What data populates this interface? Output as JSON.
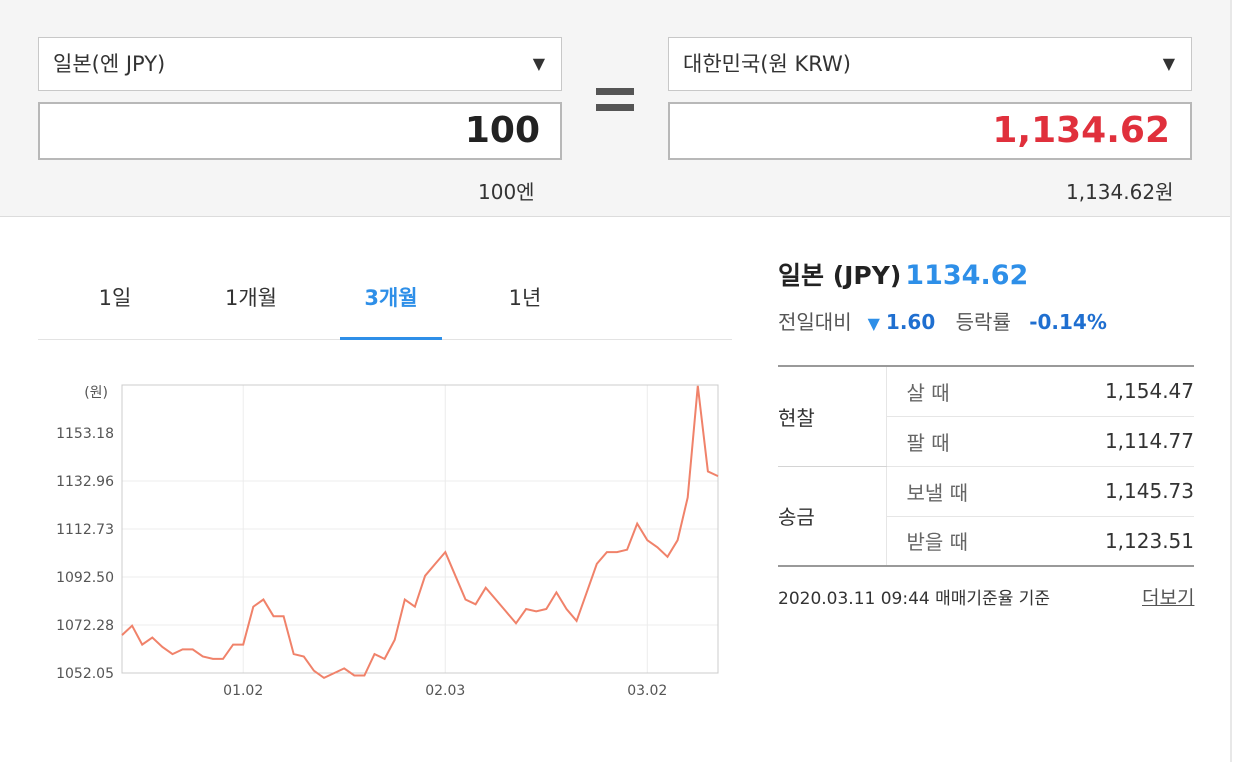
{
  "converter": {
    "from_currency": "일본(엔 JPY)",
    "from_amount": "100",
    "from_readable": "100엔",
    "to_currency": "대한민국(원 KRW)",
    "to_amount": "1,134.62",
    "to_readable": "1,134.62원",
    "chevron_icon": "▼",
    "accent_red": "#e0303c"
  },
  "tabs": [
    "1일",
    "1개월",
    "3개월",
    "1년"
  ],
  "active_tab": "3개월",
  "chart_data": {
    "type": "line",
    "unit_label": "(원)",
    "ytick_labels": [
      "1153.18",
      "1132.96",
      "1112.73",
      "1092.50",
      "1072.28",
      "1052.05"
    ],
    "yticks": [
      1153.18,
      1132.96,
      1112.73,
      1092.5,
      1072.28,
      1052.05
    ],
    "ylim": [
      1052.05,
      1173.4
    ],
    "x_tick_labels": [
      "01.02",
      "02.03",
      "03.02"
    ],
    "x_tick_index": [
      12,
      32,
      52
    ],
    "series": [
      {
        "color": "#f0826a",
        "values": [
          1068,
          1072,
          1064,
          1067,
          1063,
          1060,
          1062,
          1062,
          1059,
          1058,
          1058,
          1064,
          1064,
          1080,
          1083,
          1076,
          1076,
          1060,
          1059,
          1053,
          1050,
          1052,
          1054,
          1051,
          1051,
          1060,
          1058,
          1066,
          1083,
          1080,
          1093,
          1098,
          1103,
          1093,
          1083,
          1081,
          1088,
          1083,
          1078,
          1073,
          1079,
          1078,
          1079,
          1086,
          1079,
          1074,
          1086,
          1098,
          1103,
          1103,
          1104,
          1115,
          1108,
          1105,
          1101,
          1108,
          1126,
          1173,
          1137,
          1135
        ]
      }
    ]
  },
  "info": {
    "country": "일본 (JPY)",
    "rate": "1134.62",
    "diff_label": "전일대비",
    "diff_arrow": "▼",
    "diff_value": "1.60",
    "pct_label": "등락률",
    "pct_value": "-0.14%",
    "cash_label": "현찰",
    "remit_label": "송금",
    "rows": [
      {
        "label": "살 때",
        "value": "1,154.47"
      },
      {
        "label": "팔 때",
        "value": "1,114.77"
      },
      {
        "label": "보낼 때",
        "value": "1,145.73"
      },
      {
        "label": "받을 때",
        "value": "1,123.51"
      }
    ],
    "date": "2020.03.11 09:44  매매기준율 기준",
    "more": "더보기"
  }
}
